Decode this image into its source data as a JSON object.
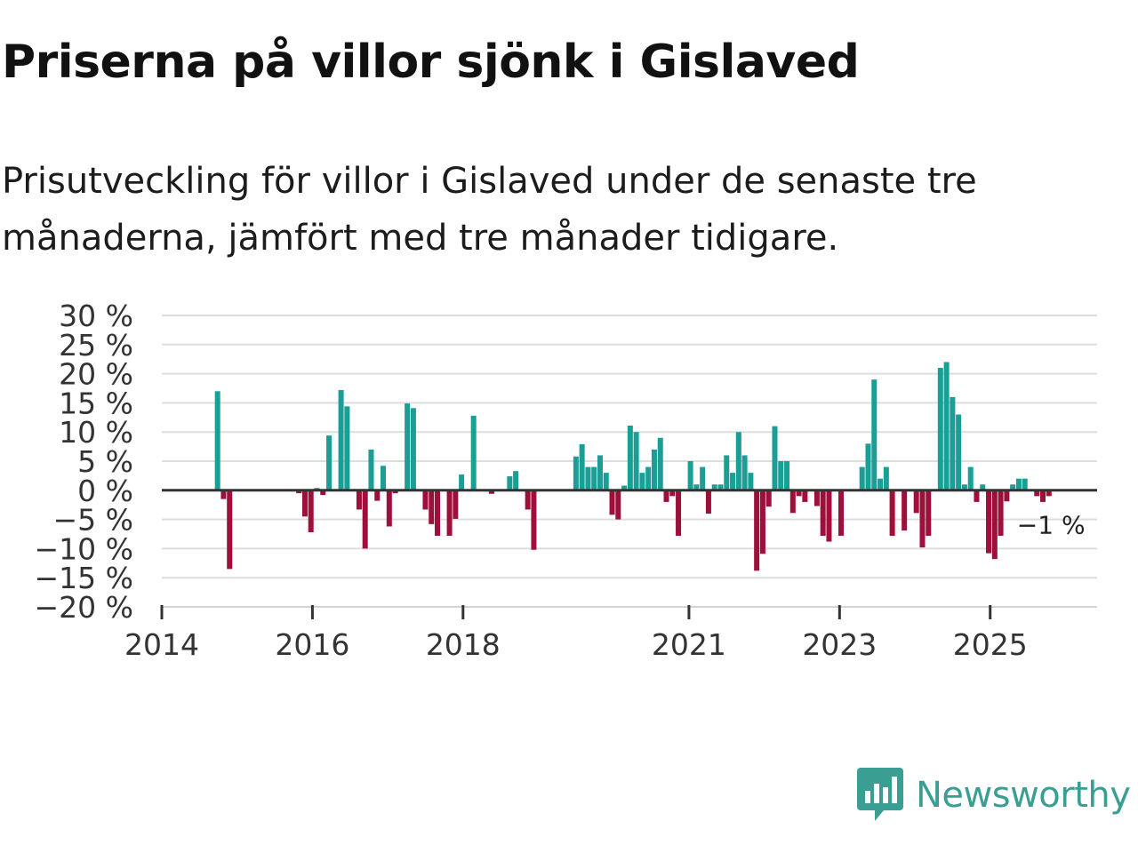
{
  "title": "Priserna på villor sjönk i Gislaved",
  "subtitle": "Prisutveckling för villor i Gislaved under de senaste tre månaderna, jämfört med tre månader tidigare.",
  "brand": {
    "name": "Newsworthy",
    "color": "#3a9e93"
  },
  "colors": {
    "positive": "#1a9e95",
    "negative": "#9e0f3c",
    "grid": "#dddddd",
    "zero": "#333333"
  },
  "chart_data": {
    "type": "bar",
    "ylim": [
      -20,
      30
    ],
    "yticks": [
      30,
      25,
      20,
      15,
      10,
      5,
      0,
      -5,
      -10,
      -15,
      -20
    ],
    "ytick_labels": [
      "30 %",
      "25 %",
      "20 %",
      "15 %",
      "10 %",
      "5 %",
      "0 %",
      "−5 %",
      "−10 %",
      "−15 %",
      "−20 %"
    ],
    "xticks": [
      {
        "label": "2014",
        "x": 2014.0
      },
      {
        "label": "2016",
        "x": 2016.0
      },
      {
        "label": "2018",
        "x": 2018.0
      },
      {
        "label": "2021",
        "x": 2021.0
      },
      {
        "label": "2023",
        "x": 2023.0
      },
      {
        "label": "2025",
        "x": 2025.0
      }
    ],
    "x_domain": [
      2014.0,
      2026.42
    ],
    "last_value_label": "−1 %",
    "series": [
      {
        "name": "Prisutveckling",
        "points": [
          {
            "x": 2014.74,
            "y": 17
          },
          {
            "x": 2014.82,
            "y": -1.5
          },
          {
            "x": 2014.9,
            "y": -13.5
          },
          {
            "x": 2015.82,
            "y": -0.5
          },
          {
            "x": 2015.9,
            "y": -4.5
          },
          {
            "x": 2015.98,
            "y": -7.2
          },
          {
            "x": 2016.06,
            "y": 0.4
          },
          {
            "x": 2016.14,
            "y": -0.8
          },
          {
            "x": 2016.22,
            "y": 9.4
          },
          {
            "x": 2016.3,
            "y": 0.1
          },
          {
            "x": 2016.38,
            "y": 17.2
          },
          {
            "x": 2016.46,
            "y": 14.4
          },
          {
            "x": 2016.54,
            "y": 0.2
          },
          {
            "x": 2016.62,
            "y": -3.3
          },
          {
            "x": 2016.7,
            "y": -10.0
          },
          {
            "x": 2016.78,
            "y": 7.0
          },
          {
            "x": 2016.86,
            "y": -1.8
          },
          {
            "x": 2016.94,
            "y": 4.2
          },
          {
            "x": 2017.02,
            "y": -6.2
          },
          {
            "x": 2017.1,
            "y": -0.5
          },
          {
            "x": 2017.18,
            "y": 0.1
          },
          {
            "x": 2017.26,
            "y": 14.9
          },
          {
            "x": 2017.34,
            "y": 14.1
          },
          {
            "x": 2017.42,
            "y": 0.2
          },
          {
            "x": 2017.5,
            "y": -3.3
          },
          {
            "x": 2017.58,
            "y": -5.8
          },
          {
            "x": 2017.66,
            "y": -7.8
          },
          {
            "x": 2017.74,
            "y": 0.2
          },
          {
            "x": 2017.82,
            "y": -7.8
          },
          {
            "x": 2017.9,
            "y": -4.9
          },
          {
            "x": 2017.98,
            "y": 2.7
          },
          {
            "x": 2018.06,
            "y": 0.2
          },
          {
            "x": 2018.14,
            "y": 12.8
          },
          {
            "x": 2018.3,
            "y": -0.2
          },
          {
            "x": 2018.38,
            "y": -0.6
          },
          {
            "x": 2018.62,
            "y": 2.4
          },
          {
            "x": 2018.7,
            "y": 3.3
          },
          {
            "x": 2018.86,
            "y": -3.3
          },
          {
            "x": 2018.94,
            "y": -10.2
          },
          {
            "x": 2019.5,
            "y": 5.8
          },
          {
            "x": 2019.58,
            "y": 7.9
          },
          {
            "x": 2019.66,
            "y": 4.0
          },
          {
            "x": 2019.74,
            "y": 4.0
          },
          {
            "x": 2019.82,
            "y": 6.0
          },
          {
            "x": 2019.9,
            "y": 3.0
          },
          {
            "x": 2019.98,
            "y": -4.2
          },
          {
            "x": 2020.06,
            "y": -5.0
          },
          {
            "x": 2020.14,
            "y": 0.8
          },
          {
            "x": 2020.22,
            "y": 11.1
          },
          {
            "x": 2020.3,
            "y": 10.0
          },
          {
            "x": 2020.38,
            "y": 3.0
          },
          {
            "x": 2020.46,
            "y": 4.0
          },
          {
            "x": 2020.54,
            "y": 7.0
          },
          {
            "x": 2020.62,
            "y": 9.0
          },
          {
            "x": 2020.7,
            "y": -2.0
          },
          {
            "x": 2020.78,
            "y": -1.0
          },
          {
            "x": 2020.86,
            "y": -7.8
          },
          {
            "x": 2020.94,
            "y": 0.2
          },
          {
            "x": 2021.02,
            "y": 5.0
          },
          {
            "x": 2021.1,
            "y": 1.0
          },
          {
            "x": 2021.18,
            "y": 4.0
          },
          {
            "x": 2021.26,
            "y": -4.0
          },
          {
            "x": 2021.34,
            "y": 1.0
          },
          {
            "x": 2021.42,
            "y": 1.0
          },
          {
            "x": 2021.5,
            "y": 6.0
          },
          {
            "x": 2021.58,
            "y": 3.0
          },
          {
            "x": 2021.66,
            "y": 10.0
          },
          {
            "x": 2021.74,
            "y": 6.0
          },
          {
            "x": 2021.82,
            "y": 3.0
          },
          {
            "x": 2021.9,
            "y": -13.8
          },
          {
            "x": 2021.98,
            "y": -10.9
          },
          {
            "x": 2022.06,
            "y": -2.8
          },
          {
            "x": 2022.14,
            "y": 11.0
          },
          {
            "x": 2022.22,
            "y": 5.0
          },
          {
            "x": 2022.3,
            "y": 5.0
          },
          {
            "x": 2022.38,
            "y": -3.9
          },
          {
            "x": 2022.46,
            "y": -1.0
          },
          {
            "x": 2022.54,
            "y": -2.0
          },
          {
            "x": 2022.7,
            "y": -2.7
          },
          {
            "x": 2022.78,
            "y": -7.8
          },
          {
            "x": 2022.86,
            "y": -8.8
          },
          {
            "x": 2022.94,
            "y": 0.1
          },
          {
            "x": 2023.02,
            "y": -7.8
          },
          {
            "x": 2023.3,
            "y": 4.0
          },
          {
            "x": 2023.38,
            "y": 8.0
          },
          {
            "x": 2023.46,
            "y": 19.0
          },
          {
            "x": 2023.54,
            "y": 2.0
          },
          {
            "x": 2023.62,
            "y": 4.0
          },
          {
            "x": 2023.7,
            "y": -7.8
          },
          {
            "x": 2023.86,
            "y": -6.9
          },
          {
            "x": 2024.02,
            "y": -3.9
          },
          {
            "x": 2024.1,
            "y": -9.8
          },
          {
            "x": 2024.18,
            "y": -7.8
          },
          {
            "x": 2024.34,
            "y": 21.0
          },
          {
            "x": 2024.42,
            "y": 22.0
          },
          {
            "x": 2024.5,
            "y": 16.0
          },
          {
            "x": 2024.58,
            "y": 13.0
          },
          {
            "x": 2024.66,
            "y": 1.0
          },
          {
            "x": 2024.74,
            "y": 4.0
          },
          {
            "x": 2024.82,
            "y": -2.0
          },
          {
            "x": 2024.9,
            "y": 1.0
          },
          {
            "x": 2024.98,
            "y": -10.8
          },
          {
            "x": 2025.06,
            "y": -11.8
          },
          {
            "x": 2025.14,
            "y": -7.8
          },
          {
            "x": 2025.22,
            "y": -1.9
          },
          {
            "x": 2025.3,
            "y": 1.0
          },
          {
            "x": 2025.38,
            "y": 2.0
          },
          {
            "x": 2025.46,
            "y": 2.0
          },
          {
            "x": 2025.54,
            "y": 0.1
          },
          {
            "x": 2025.62,
            "y": -1.0
          },
          {
            "x": 2025.7,
            "y": -2.0
          },
          {
            "x": 2025.78,
            "y": -1.0
          }
        ]
      }
    ]
  }
}
